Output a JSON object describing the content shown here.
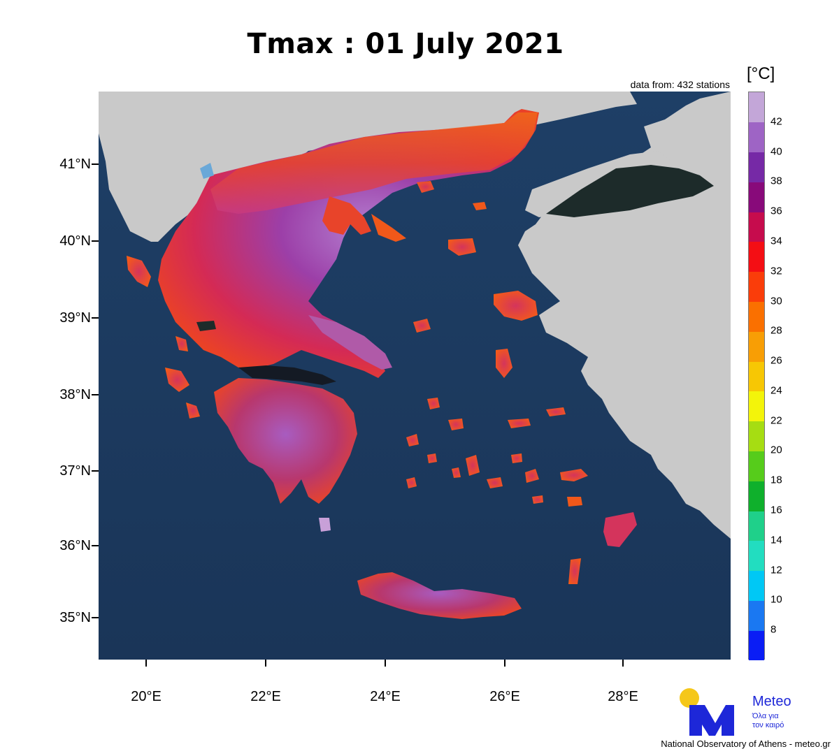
{
  "title": "Tmax : 01 July 2021",
  "stations_note": "data from: 432 stations",
  "colorbar": {
    "unit": "[°C]",
    "labels": [
      "8",
      "10",
      "12",
      "14",
      "16",
      "18",
      "20",
      "22",
      "24",
      "26",
      "28",
      "30",
      "32",
      "34",
      "36",
      "38",
      "40",
      "42"
    ],
    "colors": [
      "#0a1df5",
      "#1a78f2",
      "#00c8f5",
      "#22ddc0",
      "#1fd08a",
      "#0fb02c",
      "#56cc1b",
      "#a6dd12",
      "#f3f40a",
      "#f7c704",
      "#f89e05",
      "#fa7000",
      "#fa3d0a",
      "#f40e14",
      "#c60c4d",
      "#880a7a",
      "#7629a6",
      "#9e64c5",
      "#c3a6d8"
    ]
  },
  "axes": {
    "lat_labels": [
      "41°N",
      "40°N",
      "39°N",
      "38°N",
      "37°N",
      "36°N",
      "35°N"
    ],
    "lon_labels": [
      "20°E",
      "22°E",
      "24°E",
      "26°E",
      "28°E"
    ]
  },
  "legend_colors": {
    "sea": "#1c3c63",
    "neighbour_land": "#c9c9c9",
    "lake": "#1d2b2a"
  },
  "logo": {
    "name": "Meteo",
    "slogan_line1": "Όλα για",
    "slogan_line2": "τον καιρό"
  },
  "footer": "National Observatory of Athens - meteo.gr"
}
